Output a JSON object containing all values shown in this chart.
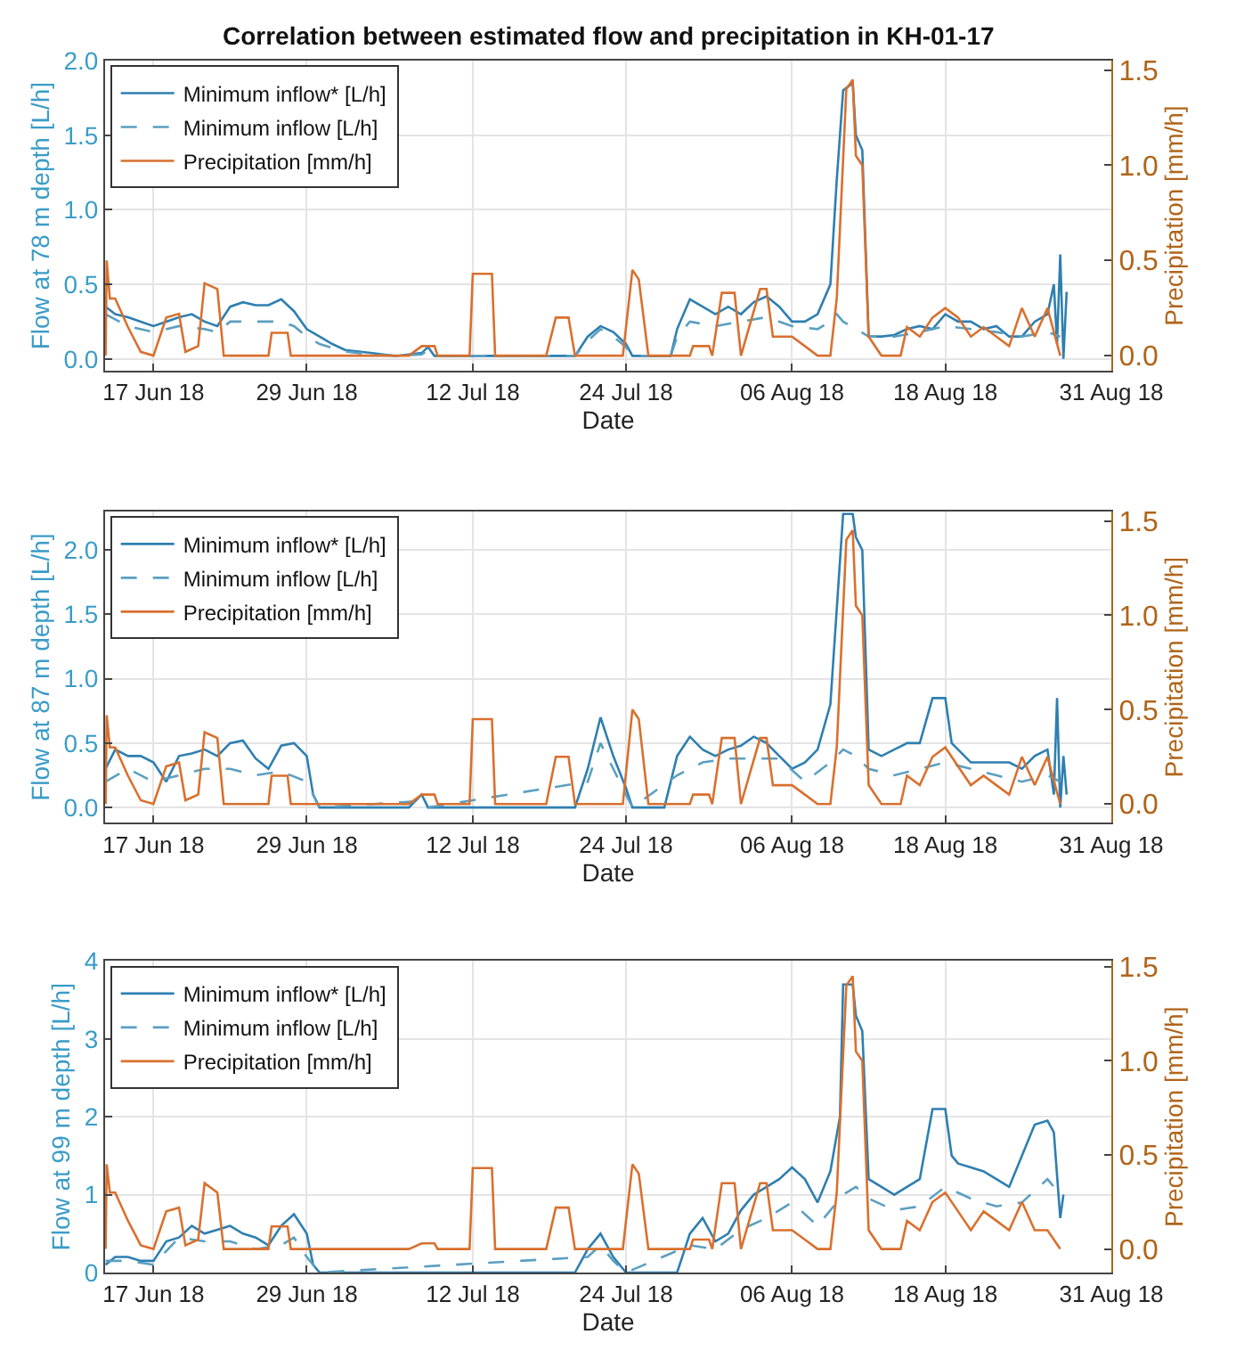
{
  "chart_data": [
    {
      "type": "line",
      "title": "Correlation between estimated flow and precipitation in KH-01-17",
      "xlabel": "Date",
      "ylabel": "Flow at 78 m depth [L/h]",
      "y2label": "Precipitation [mm/h]",
      "legend": "top left",
      "grid": true,
      "xlim": [
        "--06-13T05:00",
        "--08-31"
      ],
      "xticks": [
        {
          "value": "--06-17",
          "label": "17 Jun 18"
        },
        {
          "value": "--06-29",
          "label": "29 Jun 18"
        },
        {
          "value": "--07-12",
          "label": "12 Jul 18"
        },
        {
          "value": "--07-24",
          "label": "24 Jul 18"
        },
        {
          "value": "--08-06",
          "label": "06 Aug 18"
        },
        {
          "value": "--08-18",
          "label": "18 Aug 18"
        },
        {
          "value": "--08-31",
          "label": "31 Aug 18"
        }
      ],
      "ylim": [
        -0.08,
        2.0
      ],
      "yticks": [
        {
          "value": 0,
          "label": "0.0"
        },
        {
          "value": 0.5,
          "label": "0.5"
        },
        {
          "value": 1,
          "label": "1.0"
        },
        {
          "value": 1.5,
          "label": "1.5"
        },
        {
          "value": 2,
          "label": "2.0"
        }
      ],
      "y2lim": [
        -0.08,
        1.55
      ],
      "y2ticks": [
        {
          "value": 0,
          "label": "0.0"
        },
        {
          "value": 0.5,
          "label": "0.5"
        },
        {
          "value": 1,
          "label": "1.0"
        },
        {
          "value": 1.5,
          "label": "1.5"
        }
      ],
      "series": [
        {
          "name": "Minimum inflow* [L/h]",
          "color": "#2e7fb0",
          "line_style": "solid",
          "x": [
            "--06-13T06:00",
            "--06-14",
            "--06-15",
            "--06-16",
            "--06-17",
            "--06-18",
            "--06-19",
            "--06-20",
            "--06-21",
            "--06-22",
            "--06-23",
            "--06-24",
            "--06-25",
            "--06-26",
            "--06-27",
            "--06-28",
            "--06-29",
            "--06-30",
            "--07-01",
            "--07-02",
            "--07-04",
            "--07-06",
            "--07-08",
            "--07-08T12:00",
            "--07-09",
            "--07-20",
            "--07-21",
            "--07-22",
            "--07-23",
            "--07-24",
            "--07-24T12:00",
            "--07-27T12:00",
            "--07-28",
            "--07-29",
            "--07-30",
            "--07-31",
            "--08-01",
            "--08-02",
            "--08-03",
            "--08-04",
            "--08-05",
            "--08-06",
            "--08-07",
            "--08-08",
            "--08-09",
            "--08-09T12:00",
            "--08-10",
            "--08-10T18:00",
            "--08-11",
            "--08-11T12:00",
            "--08-12",
            "--08-13",
            "--08-14",
            "--08-15",
            "--08-16",
            "--08-17",
            "--08-18",
            "--08-19",
            "--08-20",
            "--08-21",
            "--08-22",
            "--08-23",
            "--08-24",
            "--08-25",
            "--08-26",
            "--08-26T12:00",
            "--08-26T18:00",
            "--08-27",
            "--08-27T06:00",
            "--08-27T12:00"
          ],
          "values": [
            0.35,
            0.3,
            0.28,
            0.25,
            0.22,
            0.25,
            0.28,
            0.3,
            0.25,
            0.22,
            0.35,
            0.38,
            0.36,
            0.36,
            0.4,
            0.32,
            0.2,
            0.15,
            0.1,
            0.06,
            0.04,
            0.02,
            0.04,
            0.08,
            0.02,
            0.02,
            0.15,
            0.22,
            0.18,
            0.1,
            0.02,
            0.02,
            0.2,
            0.4,
            0.35,
            0.3,
            0.35,
            0.3,
            0.38,
            0.42,
            0.35,
            0.25,
            0.25,
            0.3,
            0.5,
            1.2,
            1.8,
            1.85,
            1.5,
            1.4,
            0.15,
            0.15,
            0.16,
            0.2,
            0.22,
            0.2,
            0.3,
            0.25,
            0.25,
            0.2,
            0.22,
            0.15,
            0.15,
            0.25,
            0.3,
            0.5,
            0.1,
            0.7,
            0.0,
            0.45
          ]
        },
        {
          "name": "Minimum inflow [L/h]",
          "color": "#5b9fc0",
          "line_style": "dashed",
          "x": [
            "--06-13T06:00",
            "--06-15",
            "--06-17",
            "--06-19",
            "--06-21",
            "--06-22",
            "--06-23",
            "--06-25",
            "--06-27",
            "--06-28",
            "--06-29",
            "--06-30",
            "--07-02",
            "--07-04",
            "--07-06",
            "--07-08",
            "--07-08T12:00",
            "--07-09",
            "--07-20",
            "--07-21",
            "--07-22",
            "--07-23",
            "--07-24",
            "--07-24T12:00",
            "--07-27T12:00",
            "--07-28",
            "--07-29",
            "--07-31",
            "--08-02",
            "--08-04",
            "--08-06",
            "--08-08",
            "--08-09",
            "--08-09T12:00",
            "--08-10",
            "--08-11",
            "--08-12",
            "--08-14",
            "--08-16",
            "--08-18",
            "--08-20",
            "--08-22",
            "--08-24",
            "--08-26",
            "--08-27"
          ],
          "values": [
            0.3,
            0.22,
            0.18,
            0.22,
            0.2,
            0.18,
            0.25,
            0.25,
            0.25,
            0.22,
            0.15,
            0.1,
            0.05,
            0.03,
            0.02,
            0.03,
            0.06,
            0.02,
            0.02,
            0.12,
            0.2,
            0.15,
            0.08,
            0.02,
            0.02,
            0.15,
            0.25,
            0.22,
            0.25,
            0.28,
            0.22,
            0.2,
            0.25,
            0.3,
            0.25,
            0.2,
            0.15,
            0.15,
            0.18,
            0.22,
            0.2,
            0.18,
            0.15,
            0.18,
            0.15
          ]
        },
        {
          "name": "Precipitation [mm/h]",
          "color": "#d9702e",
          "line_style": "solid",
          "axis": "y2",
          "x": [
            "--06-13T06:00",
            "--06-13T08:00",
            "--06-13T14:00",
            "--06-14",
            "--06-15",
            "--06-16",
            "--06-17",
            "--06-18",
            "--06-19",
            "--06-19T12:00",
            "--06-20T12:00",
            "--06-21",
            "--06-22",
            "--06-22T12:00",
            "--06-26",
            "--06-26T06:00",
            "--06-27T12:00",
            "--06-27T18:00",
            "--07-07",
            "--07-08",
            "--07-09",
            "--07-09T06:00",
            "--07-11T18:00",
            "--07-12",
            "--07-13T12:00",
            "--07-13T18:00",
            "--07-17T18:00",
            "--07-18T12:00",
            "--07-19T12:00",
            "--07-20",
            "--07-23T18:00",
            "--07-24T12:00",
            "--07-25",
            "--07-25T18:00",
            "--07-29",
            "--07-29T06:00",
            "--07-30T12:00",
            "--07-30T18:00",
            "--07-31T12:00",
            "--08-01T12:00",
            "--08-02",
            "--08-03T12:00",
            "--08-04",
            "--08-04T12:00",
            "--08-06",
            "--08-07",
            "--08-08",
            "--08-09",
            "--08-09T12:00",
            "--08-10T06:00",
            "--08-10T18:00",
            "--08-11",
            "--08-11T12:00",
            "--08-12",
            "--08-13",
            "--08-14T12:00",
            "--08-15",
            "--08-16",
            "--08-17",
            "--08-18",
            "--08-19",
            "--08-20",
            "--08-21",
            "--08-22",
            "--08-23",
            "--08-24",
            "--08-25",
            "--08-26",
            "--08-27"
          ],
          "values": [
            0.0,
            0.5,
            0.3,
            0.3,
            0.15,
            0.02,
            0.0,
            0.2,
            0.22,
            0.02,
            0.05,
            0.38,
            0.35,
            0.0,
            0.0,
            0.12,
            0.12,
            0.0,
            0.0,
            0.05,
            0.05,
            0.0,
            0.0,
            0.43,
            0.43,
            0.0,
            0.0,
            0.2,
            0.2,
            0.0,
            0.0,
            0.45,
            0.4,
            0.0,
            0.0,
            0.05,
            0.05,
            0.0,
            0.33,
            0.33,
            0.0,
            0.35,
            0.35,
            0.1,
            0.1,
            0.05,
            0.0,
            0.0,
            0.3,
            1.4,
            1.45,
            1.05,
            1.0,
            0.1,
            0.0,
            0.0,
            0.15,
            0.1,
            0.2,
            0.25,
            0.2,
            0.1,
            0.15,
            0.1,
            0.05,
            0.25,
            0.1,
            0.25,
            0.0
          ]
        }
      ]
    },
    {
      "type": "line",
      "xlabel": "Date",
      "ylabel": "Flow at 87 m depth [L/h]",
      "y2label": "Precipitation [mm/h]",
      "legend": "top left",
      "grid": true,
      "xlim": [
        "--06-13T05:00",
        "--08-31"
      ],
      "xticks": [
        {
          "value": "--06-17",
          "label": "17 Jun 18"
        },
        {
          "value": "--06-29",
          "label": "29 Jun 18"
        },
        {
          "value": "--07-12",
          "label": "12 Jul 18"
        },
        {
          "value": "--07-24",
          "label": "24 Jul 18"
        },
        {
          "value": "--08-06",
          "label": "06 Aug 18"
        },
        {
          "value": "--08-18",
          "label": "18 Aug 18"
        },
        {
          "value": "--08-31",
          "label": "31 Aug 18"
        }
      ],
      "ylim": [
        -0.12,
        2.3
      ],
      "yticks": [
        {
          "value": 0,
          "label": "0.0"
        },
        {
          "value": 0.5,
          "label": "0.5"
        },
        {
          "value": 1,
          "label": "1.0"
        },
        {
          "value": 1.5,
          "label": "1.5"
        },
        {
          "value": 2,
          "label": "2.0"
        }
      ],
      "y2lim": [
        -0.1,
        1.55
      ],
      "y2ticks": [
        {
          "value": 0,
          "label": "0.0"
        },
        {
          "value": 0.5,
          "label": "0.5"
        },
        {
          "value": 1,
          "label": "1.0"
        },
        {
          "value": 1.5,
          "label": "1.5"
        }
      ],
      "series": [
        {
          "name": "Minimum inflow* [L/h]",
          "color": "#2e7fb0",
          "line_style": "solid",
          "x": [
            "--06-13T06:00",
            "--06-14",
            "--06-15",
            "--06-16",
            "--06-17",
            "--06-18",
            "--06-19",
            "--06-20",
            "--06-21",
            "--06-22",
            "--06-23",
            "--06-24",
            "--06-25",
            "--06-26",
            "--06-27",
            "--06-28",
            "--06-29",
            "--06-29T12:00",
            "--06-30",
            "--07-07",
            "--07-08",
            "--07-08T12:00",
            "--07-20",
            "--07-21",
            "--07-22",
            "--07-23",
            "--07-24",
            "--07-24T12:00",
            "--07-27",
            "--07-28",
            "--07-29",
            "--07-30",
            "--07-31",
            "--08-01",
            "--08-02",
            "--08-03",
            "--08-04",
            "--08-05",
            "--08-06",
            "--08-07",
            "--08-08",
            "--08-09",
            "--08-10",
            "--08-10T18:00",
            "--08-11",
            "--08-11T12:00",
            "--08-12",
            "--08-13",
            "--08-14",
            "--08-15",
            "--08-16",
            "--08-17",
            "--08-18",
            "--08-18T12:00",
            "--08-19",
            "--08-20",
            "--08-21",
            "--08-22",
            "--08-23",
            "--08-24",
            "--08-25",
            "--08-26",
            "--08-26T12:00",
            "--08-26T18:00",
            "--08-27",
            "--08-27T06:00",
            "--08-27T12:00"
          ],
          "values": [
            0.3,
            0.45,
            0.4,
            0.4,
            0.35,
            0.2,
            0.4,
            0.42,
            0.45,
            0.4,
            0.5,
            0.52,
            0.38,
            0.3,
            0.48,
            0.5,
            0.4,
            0.1,
            0.0,
            0.0,
            0.1,
            0.0,
            0.0,
            0.3,
            0.7,
            0.4,
            0.15,
            0.0,
            0.0,
            0.4,
            0.55,
            0.45,
            0.4,
            0.45,
            0.48,
            0.55,
            0.5,
            0.4,
            0.3,
            0.35,
            0.45,
            0.8,
            2.28,
            2.28,
            2.1,
            2.0,
            0.45,
            0.4,
            0.45,
            0.5,
            0.5,
            0.85,
            0.85,
            0.5,
            0.45,
            0.35,
            0.35,
            0.35,
            0.35,
            0.3,
            0.4,
            0.45,
            0.1,
            0.85,
            0.0,
            0.4,
            0.1
          ]
        },
        {
          "name": "Minimum inflow [L/h]",
          "color": "#5b9fc0",
          "line_style": "dashed",
          "x": [
            "--06-13T06:00",
            "--06-15",
            "--06-17",
            "--06-19",
            "--06-21",
            "--06-23",
            "--06-25",
            "--06-27",
            "--06-29",
            "--06-30",
            "--07-08",
            "--07-08T12:00",
            "--07-21",
            "--07-22",
            "--07-23",
            "--07-24T12:00",
            "--07-28",
            "--07-30",
            "--08-01",
            "--08-03",
            "--08-05",
            "--08-07",
            "--08-09",
            "--08-10",
            "--08-11",
            "--08-12",
            "--08-14",
            "--08-16",
            "--08-18",
            "--08-20",
            "--08-22",
            "--08-24",
            "--08-26",
            "--08-27"
          ],
          "values": [
            0.2,
            0.3,
            0.2,
            0.25,
            0.3,
            0.3,
            0.25,
            0.28,
            0.2,
            0.0,
            0.05,
            0.0,
            0.2,
            0.5,
            0.3,
            0.0,
            0.25,
            0.35,
            0.38,
            0.38,
            0.38,
            0.2,
            0.35,
            0.45,
            0.4,
            0.3,
            0.25,
            0.3,
            0.35,
            0.3,
            0.25,
            0.2,
            0.25,
            0.2
          ]
        },
        {
          "name": "Precipitation [mm/h]",
          "color": "#d9702e",
          "line_style": "solid",
          "axis": "y2",
          "x": [
            "--06-13T06:00",
            "--06-13T08:00",
            "--06-13T14:00",
            "--06-14",
            "--06-15",
            "--06-16",
            "--06-17",
            "--06-18",
            "--06-19",
            "--06-19T12:00",
            "--06-20T12:00",
            "--06-21",
            "--06-22",
            "--06-22T12:00",
            "--06-26",
            "--06-26T06:00",
            "--06-27T12:00",
            "--06-27T18:00",
            "--07-07",
            "--07-08",
            "--07-09",
            "--07-09T06:00",
            "--07-11T18:00",
            "--07-12",
            "--07-13T12:00",
            "--07-13T18:00",
            "--07-17T18:00",
            "--07-18T12:00",
            "--07-19T12:00",
            "--07-20",
            "--07-23T18:00",
            "--07-24T12:00",
            "--07-25",
            "--07-25T18:00",
            "--07-29",
            "--07-29T06:00",
            "--07-30T12:00",
            "--07-30T18:00",
            "--07-31T12:00",
            "--08-01T12:00",
            "--08-02",
            "--08-03T12:00",
            "--08-04",
            "--08-04T12:00",
            "--08-06",
            "--08-07",
            "--08-08",
            "--08-09",
            "--08-09T12:00",
            "--08-10T06:00",
            "--08-10T18:00",
            "--08-11",
            "--08-11T12:00",
            "--08-12",
            "--08-13",
            "--08-14T12:00",
            "--08-15",
            "--08-16",
            "--08-17",
            "--08-18",
            "--08-19",
            "--08-20",
            "--08-21",
            "--08-22",
            "--08-23",
            "--08-24",
            "--08-25",
            "--08-26",
            "--08-27"
          ],
          "values": [
            0.0,
            0.47,
            0.3,
            0.3,
            0.15,
            0.02,
            0.0,
            0.2,
            0.22,
            0.02,
            0.05,
            0.38,
            0.35,
            0.0,
            0.0,
            0.15,
            0.15,
            0.0,
            0.0,
            0.05,
            0.05,
            0.0,
            0.0,
            0.45,
            0.45,
            0.0,
            0.0,
            0.25,
            0.25,
            0.0,
            0.0,
            0.5,
            0.45,
            0.0,
            0.0,
            0.05,
            0.05,
            0.0,
            0.35,
            0.35,
            0.0,
            0.35,
            0.35,
            0.1,
            0.1,
            0.05,
            0.0,
            0.0,
            0.3,
            1.4,
            1.45,
            1.05,
            1.0,
            0.1,
            0.0,
            0.0,
            0.15,
            0.1,
            0.25,
            0.3,
            0.2,
            0.1,
            0.15,
            0.1,
            0.05,
            0.25,
            0.1,
            0.25,
            0.0
          ]
        }
      ]
    },
    {
      "type": "line",
      "xlabel": "Date",
      "ylabel": "Flow at 99 m depth [L/h]",
      "y2label": "Precipitation [mm/h]",
      "legend": "top left",
      "grid": true,
      "xlim": [
        "--06-13T05:00",
        "--08-31"
      ],
      "xticks": [
        {
          "value": "--06-17",
          "label": "17 Jun 18"
        },
        {
          "value": "--06-29",
          "label": "29 Jun 18"
        },
        {
          "value": "--07-12",
          "label": "12 Jul 18"
        },
        {
          "value": "--07-24",
          "label": "24 Jul 18"
        },
        {
          "value": "--08-06",
          "label": "06 Aug 18"
        },
        {
          "value": "--08-18",
          "label": "18 Aug 18"
        },
        {
          "value": "--08-31",
          "label": "31 Aug 18"
        }
      ],
      "ylim": [
        0,
        4
      ],
      "yticks": [
        0,
        1,
        2,
        3,
        4
      ],
      "y2lim": [
        -0.125,
        1.53
      ],
      "y2ticks": [
        {
          "value": 0,
          "label": "0.0"
        },
        {
          "value": 0.5,
          "label": "0.5"
        },
        {
          "value": 1,
          "label": "1.0"
        },
        {
          "value": 1.5,
          "label": "1.5"
        }
      ],
      "series": [
        {
          "name": "Minimum inflow* [L/h]",
          "color": "#2e7fb0",
          "line_style": "solid",
          "x": [
            "--06-13T06:00",
            "--06-14",
            "--06-15",
            "--06-16",
            "--06-17",
            "--06-18",
            "--06-19",
            "--06-20",
            "--06-21",
            "--06-22",
            "--06-23",
            "--06-24",
            "--06-25",
            "--06-26",
            "--06-27",
            "--06-28",
            "--06-29",
            "--06-29T12:00",
            "--06-30",
            "--07-20",
            "--07-21",
            "--07-22",
            "--07-23",
            "--07-24",
            "--07-28",
            "--07-29",
            "--07-30",
            "--07-31",
            "--08-01",
            "--08-02",
            "--08-03",
            "--08-04",
            "--08-05",
            "--08-06",
            "--08-07",
            "--08-08",
            "--08-09",
            "--08-09T18:00",
            "--08-10",
            "--08-10T18:00",
            "--08-11",
            "--08-11T12:00",
            "--08-12",
            "--08-13",
            "--08-14",
            "--08-15",
            "--08-16",
            "--08-17",
            "--08-18",
            "--08-18T12:00",
            "--08-19",
            "--08-20",
            "--08-21",
            "--08-22",
            "--08-23",
            "--08-24",
            "--08-25",
            "--08-26",
            "--08-26T12:00",
            "--08-27",
            "--08-27T06:00"
          ],
          "values": [
            0.1,
            0.2,
            0.2,
            0.15,
            0.15,
            0.4,
            0.45,
            0.6,
            0.5,
            0.55,
            0.6,
            0.5,
            0.45,
            0.35,
            0.6,
            0.75,
            0.5,
            0.1,
            0.0,
            0.0,
            0.3,
            0.5,
            0.2,
            0.0,
            0.0,
            0.5,
            0.7,
            0.4,
            0.5,
            0.8,
            1.0,
            1.1,
            1.2,
            1.35,
            1.2,
            0.9,
            1.3,
            2.0,
            3.7,
            3.7,
            3.3,
            3.1,
            1.2,
            1.1,
            1.0,
            1.1,
            1.2,
            2.1,
            2.1,
            1.5,
            1.4,
            1.35,
            1.3,
            1.2,
            1.1,
            1.5,
            1.9,
            1.95,
            1.8,
            0.7,
            1.0
          ]
        },
        {
          "name": "Minimum inflow [L/h]",
          "color": "#5b9fc0",
          "line_style": "dashed",
          "x": [
            "--06-13T06:00",
            "--06-15",
            "--06-17",
            "--06-19",
            "--06-21",
            "--06-23",
            "--06-25",
            "--06-27",
            "--06-28",
            "--06-29",
            "--06-30",
            "--07-21",
            "--07-22",
            "--07-23",
            "--07-24",
            "--07-29",
            "--07-31",
            "--08-02",
            "--08-04",
            "--08-06",
            "--08-08",
            "--08-10",
            "--08-11",
            "--08-12",
            "--08-14",
            "--08-16",
            "--08-18",
            "--08-20",
            "--08-22",
            "--08-24",
            "--08-26",
            "--08-27"
          ],
          "values": [
            0.15,
            0.15,
            0.1,
            0.45,
            0.4,
            0.4,
            0.3,
            0.35,
            0.45,
            0.2,
            0.0,
            0.2,
            0.35,
            0.15,
            0.0,
            0.35,
            0.3,
            0.55,
            0.7,
            0.9,
            0.6,
            1.0,
            1.1,
            0.95,
            0.8,
            0.85,
            1.1,
            0.95,
            0.85,
            0.9,
            1.2,
            1.0
          ]
        },
        {
          "name": "Precipitation [mm/h]",
          "color": "#d9702e",
          "line_style": "solid",
          "axis": "y2",
          "x": [
            "--06-13T06:00",
            "--06-13T08:00",
            "--06-13T14:00",
            "--06-14",
            "--06-15",
            "--06-16",
            "--06-17",
            "--06-18",
            "--06-19",
            "--06-19T12:00",
            "--06-20T12:00",
            "--06-21",
            "--06-22",
            "--06-22T12:00",
            "--06-26",
            "--06-26T06:00",
            "--06-27T12:00",
            "--06-27T18:00",
            "--07-07",
            "--07-08",
            "--07-09",
            "--07-09T06:00",
            "--07-11T18:00",
            "--07-12",
            "--07-13T12:00",
            "--07-13T18:00",
            "--07-17T18:00",
            "--07-18T12:00",
            "--07-19T12:00",
            "--07-20",
            "--07-23T18:00",
            "--07-24T12:00",
            "--07-25",
            "--07-25T18:00",
            "--07-29",
            "--07-29T06:00",
            "--07-30T12:00",
            "--07-30T18:00",
            "--07-31T12:00",
            "--08-01T12:00",
            "--08-02",
            "--08-03T12:00",
            "--08-04",
            "--08-04T12:00",
            "--08-06",
            "--08-07",
            "--08-08",
            "--08-09",
            "--08-09T12:00",
            "--08-10T06:00",
            "--08-10T18:00",
            "--08-11",
            "--08-11T12:00",
            "--08-12",
            "--08-13",
            "--08-14T12:00",
            "--08-15",
            "--08-16",
            "--08-17",
            "--08-18",
            "--08-19",
            "--08-20",
            "--08-21",
            "--08-22",
            "--08-23",
            "--08-24",
            "--08-25",
            "--08-26",
            "--08-27"
          ],
          "values": [
            0.0,
            0.45,
            0.3,
            0.3,
            0.15,
            0.02,
            0.0,
            0.2,
            0.22,
            0.02,
            0.05,
            0.35,
            0.3,
            0.0,
            0.0,
            0.12,
            0.12,
            0.0,
            0.0,
            0.03,
            0.03,
            0.0,
            0.0,
            0.43,
            0.43,
            0.0,
            0.0,
            0.22,
            0.22,
            0.0,
            0.0,
            0.45,
            0.4,
            0.0,
            0.0,
            0.05,
            0.05,
            0.0,
            0.35,
            0.35,
            0.0,
            0.35,
            0.35,
            0.1,
            0.1,
            0.05,
            0.0,
            0.0,
            0.3,
            1.4,
            1.45,
            1.05,
            1.0,
            0.1,
            0.0,
            0.0,
            0.15,
            0.1,
            0.25,
            0.3,
            0.2,
            0.1,
            0.2,
            0.15,
            0.1,
            0.25,
            0.1,
            0.1,
            0.0
          ]
        }
      ]
    }
  ]
}
